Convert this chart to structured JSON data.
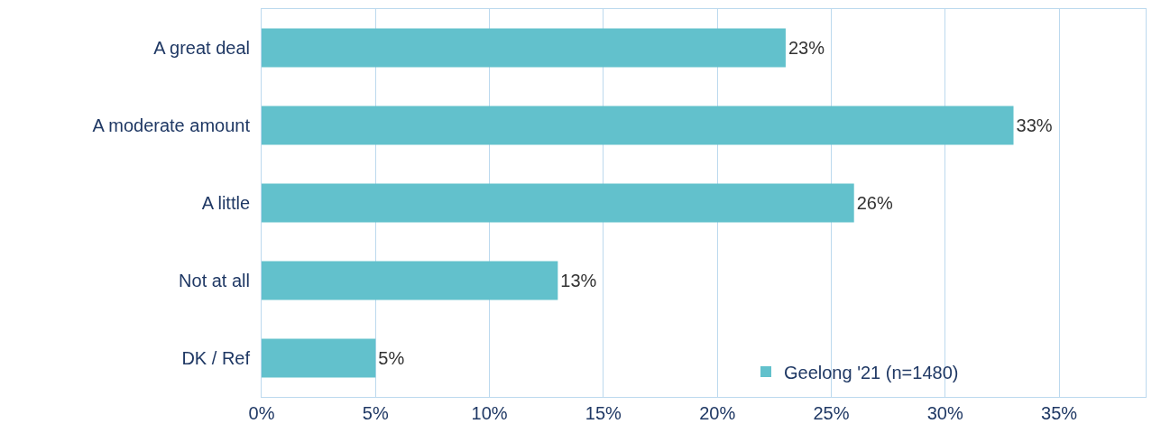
{
  "chart_data": {
    "type": "bar",
    "orientation": "horizontal",
    "categories": [
      "A great deal",
      "A moderate amount",
      "A little",
      "Not at all",
      "DK / Ref"
    ],
    "series": [
      {
        "name": "Geelong '21 (n=1480)",
        "color": "#62c1cc",
        "values": [
          23,
          33,
          26,
          13,
          5
        ],
        "value_labels": [
          "23%",
          "33%",
          "26%",
          "13%",
          "5%"
        ]
      }
    ],
    "xlim": [
      0,
      38.8
    ],
    "xticks": [
      {
        "value": 0,
        "label": "0%"
      },
      {
        "value": 5,
        "label": "5%"
      },
      {
        "value": 10,
        "label": "10%"
      },
      {
        "value": 15,
        "label": "15%"
      },
      {
        "value": 20,
        "label": "20%"
      },
      {
        "value": 25,
        "label": "25%"
      },
      {
        "value": 30,
        "label": "30%"
      },
      {
        "value": 35,
        "label": "35%"
      }
    ],
    "grid": "x",
    "legend": "bottom right"
  }
}
